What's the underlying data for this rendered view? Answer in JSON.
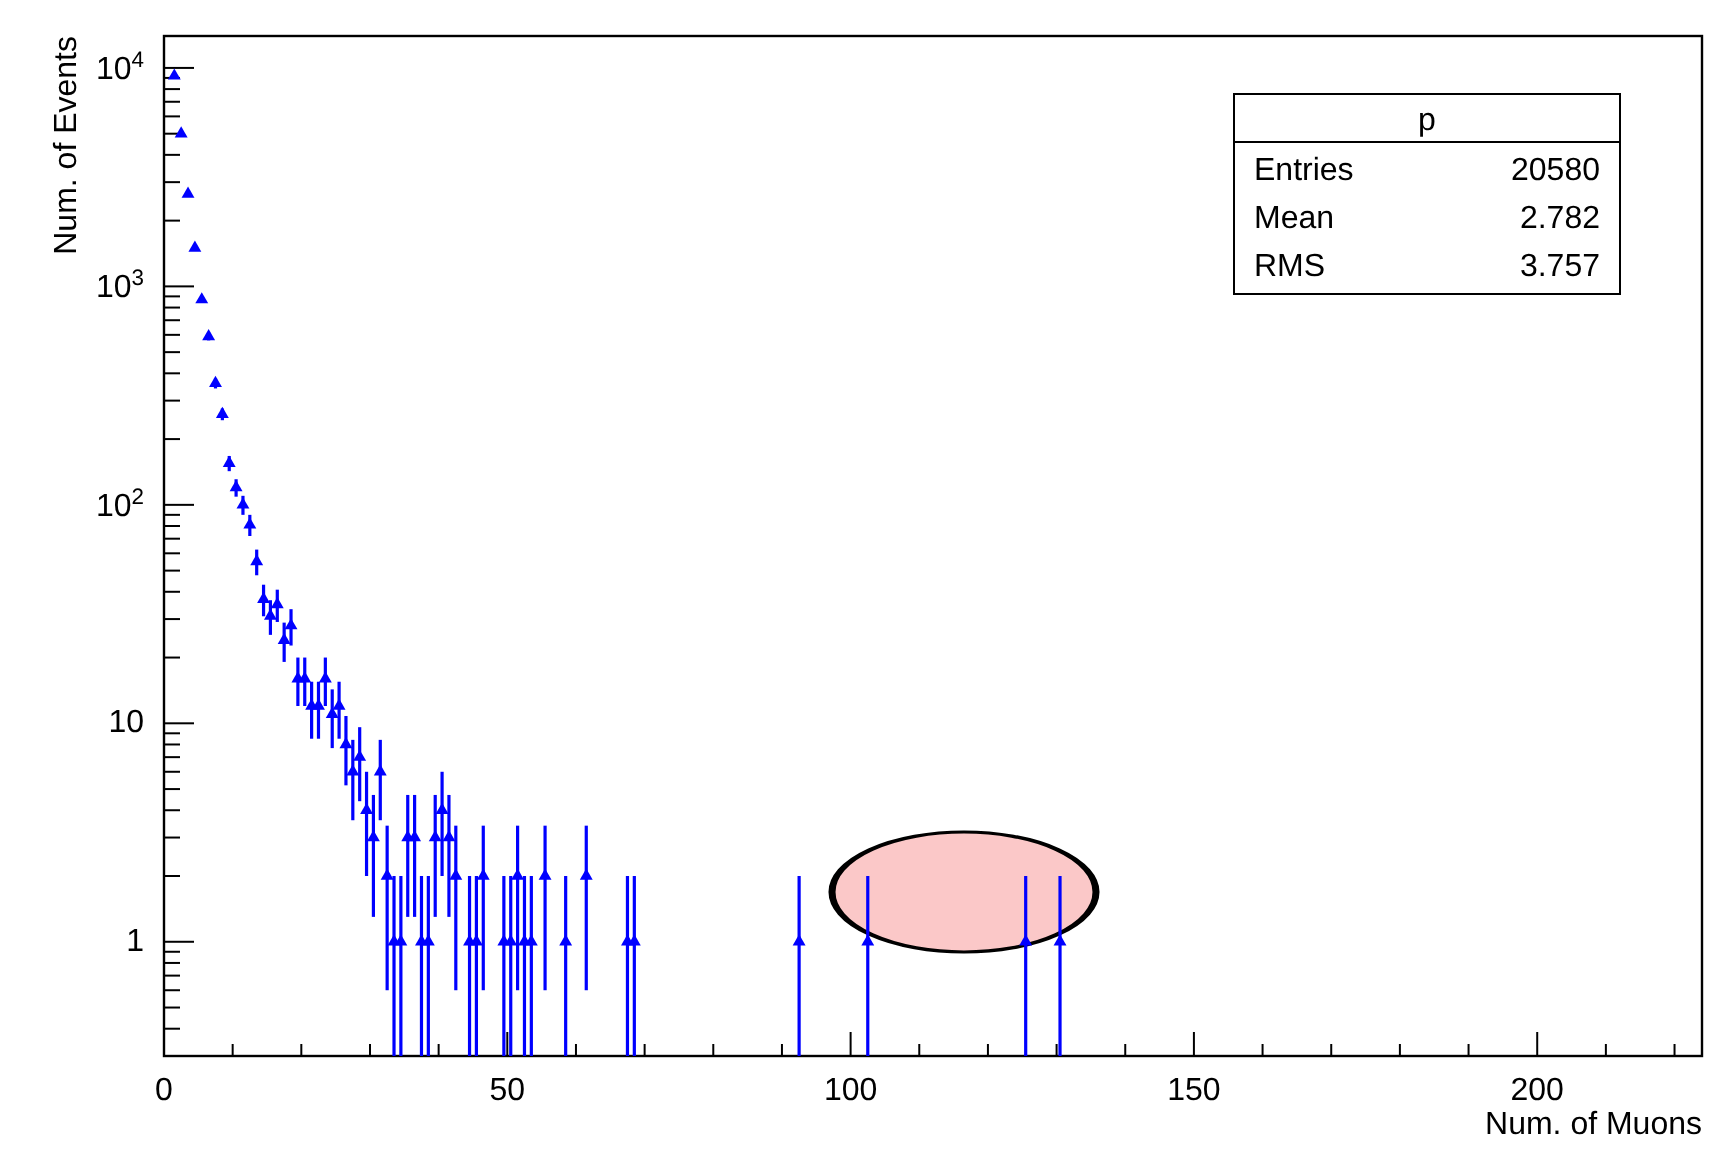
{
  "chart_data": {
    "type": "scatter",
    "xlabel": "Num. of Muons",
    "ylabel": "Num. of Events",
    "annotations": [
      "p",
      "Entries",
      "20580",
      "Mean",
      "2.782",
      "RMS",
      "3.757"
    ],
    "xlim": [
      0,
      224
    ],
    "xticks": [
      0,
      {
        "value": 10,
        "label": null
      },
      {
        "value": 20,
        "label": null
      },
      {
        "value": 30,
        "label": null
      },
      {
        "value": 40,
        "label": null
      },
      50,
      {
        "value": 60,
        "label": null
      },
      {
        "value": 70,
        "label": null
      },
      {
        "value": 80,
        "label": null
      },
      {
        "value": 90,
        "label": null
      },
      100,
      {
        "value": 110,
        "label": null
      },
      {
        "value": 120,
        "label": null
      },
      {
        "value": 130,
        "label": null
      },
      {
        "value": 140,
        "label": null
      },
      150,
      {
        "value": 160,
        "label": null
      },
      {
        "value": 170,
        "label": null
      },
      {
        "value": 180,
        "label": null
      },
      {
        "value": 190,
        "label": null
      },
      200,
      {
        "value": 210,
        "label": null
      },
      {
        "value": 220,
        "label": null
      }
    ],
    "ylim": [
      0.3,
      14000
    ],
    "log": "y",
    "yticks": [
      {
        "value": 0.4,
        "label": null
      },
      {
        "value": 0.5,
        "label": null
      },
      {
        "value": 0.6,
        "label": null
      },
      {
        "value": 0.7,
        "label": null
      },
      {
        "value": 0.8,
        "label": null
      },
      {
        "value": 0.9,
        "label": null
      },
      1,
      {
        "value": 2,
        "label": null
      },
      {
        "value": 3,
        "label": null
      },
      {
        "value": 4,
        "label": null
      },
      {
        "value": 5,
        "label": null
      },
      {
        "value": 6,
        "label": null
      },
      {
        "value": 7,
        "label": null
      },
      {
        "value": 8,
        "label": null
      },
      {
        "value": 9,
        "label": null
      },
      10,
      {
        "value": 20,
        "label": null
      },
      {
        "value": 30,
        "label": null
      },
      {
        "value": 40,
        "label": null
      },
      {
        "value": 50,
        "label": null
      },
      {
        "value": 60,
        "label": null
      },
      {
        "value": 70,
        "label": null
      },
      {
        "value": 80,
        "label": null
      },
      {
        "value": 90,
        "label": null
      },
      {
        "value": 100,
        "label": "10$^{2}$"
      },
      {
        "value": 200,
        "label": null
      },
      {
        "value": 300,
        "label": null
      },
      {
        "value": 400,
        "label": null
      },
      {
        "value": 500,
        "label": null
      },
      {
        "value": 600,
        "label": null
      },
      {
        "value": 700,
        "label": null
      },
      {
        "value": 800,
        "label": null
      },
      {
        "value": 900,
        "label": null
      },
      {
        "value": 1000,
        "label": "10$^{3}$"
      },
      {
        "value": 2000,
        "label": null
      },
      {
        "value": 3000,
        "label": null
      },
      {
        "value": 4000,
        "label": null
      },
      {
        "value": 5000,
        "label": null
      },
      {
        "value": 6000,
        "label": null
      },
      {
        "value": 7000,
        "label": null
      },
      {
        "value": 8000,
        "label": null
      },
      {
        "value": 9000,
        "label": null
      },
      {
        "value": 10000,
        "label": "10$^{4}$"
      }
    ],
    "grid": false,
    "legend": false,
    "marker": "triangle",
    "series": [
      {
        "color": "#0000ff",
        "x": [
          1.5,
          2.5,
          3.5,
          4.5,
          5.5,
          6.5,
          7.5,
          8.5,
          9.5,
          10.5,
          11.5,
          12.5,
          13.5,
          14.5,
          15.5,
          16.5,
          17.5,
          18.5,
          19.5,
          20.5,
          21.5,
          22.5,
          23.5,
          24.5,
          25.5,
          26.5,
          27.5,
          28.5,
          29.5,
          30.5,
          31.5,
          32.5,
          33.5,
          34.5,
          35.5,
          36.5,
          37.5,
          38.5,
          39.5,
          40.5,
          41.5,
          42.5,
          44.5,
          45.5,
          46.5,
          49.5,
          50.5,
          51.5,
          52.5,
          53.5,
          55.5,
          58.5,
          61.5,
          67.5,
          68.5,
          92.5,
          102.5,
          125.5,
          130.5
        ],
        "values": [
          9200,
          5000,
          2650,
          1500,
          870,
          590,
          360,
          260,
          155,
          120,
          100,
          81,
          55,
          37,
          31,
          35,
          24,
          28,
          16,
          16,
          12,
          12,
          16,
          11,
          12,
          8,
          6,
          7,
          4,
          3,
          6,
          2,
          1,
          1,
          3,
          3,
          1,
          1,
          3,
          4,
          3,
          2,
          1,
          1,
          2,
          1,
          1,
          2,
          1,
          1,
          2,
          1,
          2,
          1,
          1,
          1,
          1,
          1,
          1
        ],
        "errors": [
          null,
          null,
          null,
          null,
          29,
          24,
          19,
          16,
          12.4,
          11,
          10,
          9,
          7.4,
          6.1,
          5.6,
          5.9,
          4.9,
          5.3,
          4,
          4,
          3.5,
          3.5,
          4,
          3.3,
          3.5,
          2.8,
          2.4,
          2.6,
          2,
          1.7,
          2.4,
          1.4,
          [
            0.3,
            2
          ],
          [
            0.3,
            2
          ],
          1.7,
          1.7,
          [
            0.3,
            2
          ],
          [
            0.3,
            2
          ],
          1.7,
          2,
          1.7,
          1.4,
          [
            0.3,
            2
          ],
          [
            0.3,
            2
          ],
          1.4,
          [
            0.3,
            2
          ],
          [
            0.3,
            2
          ],
          1.4,
          [
            0.3,
            2
          ],
          [
            0.3,
            2
          ],
          1.4,
          [
            0.3,
            2
          ],
          1.4,
          [
            0.3,
            2
          ],
          [
            0.3,
            2
          ],
          [
            0.3,
            2
          ],
          [
            0.3,
            2
          ],
          [
            0.3,
            2
          ],
          [
            0.3,
            2
          ]
        ]
      }
    ]
  }
}
